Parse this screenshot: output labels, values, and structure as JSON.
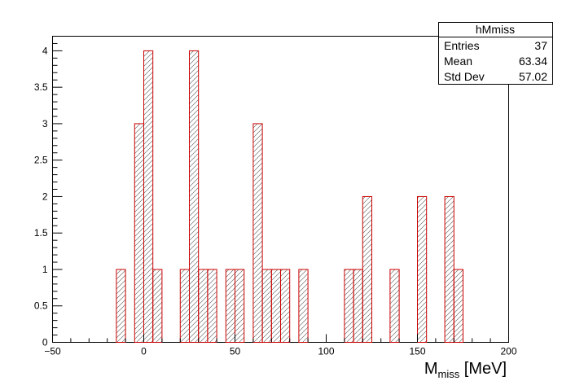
{
  "chart_data": {
    "type": "bar",
    "histogram_name": "hMmiss",
    "xlabel_main": "M",
    "xlabel_sub": "miss",
    "xlabel_unit": " [MeV]",
    "xlim": [
      -50,
      200
    ],
    "ylim": [
      0,
      4.2
    ],
    "x_ticks": [
      -50,
      0,
      50,
      100,
      150,
      200
    ],
    "x_tick_labels": [
      "−50",
      "0",
      "50",
      "100",
      "150",
      "200"
    ],
    "y_ticks": [
      0,
      0.5,
      1,
      1.5,
      2,
      2.5,
      3,
      3.5,
      4
    ],
    "y_tick_labels": [
      "0",
      "0.5",
      "1",
      "1.5",
      "2",
      "2.5",
      "3",
      "3.5",
      "4"
    ],
    "bin_width": 5,
    "bins": [
      {
        "x": -15,
        "value": 1
      },
      {
        "x": -5,
        "value": 3
      },
      {
        "x": 0,
        "value": 4
      },
      {
        "x": 5,
        "value": 1
      },
      {
        "x": 20,
        "value": 1
      },
      {
        "x": 25,
        "value": 4
      },
      {
        "x": 30,
        "value": 1
      },
      {
        "x": 35,
        "value": 1
      },
      {
        "x": 45,
        "value": 1
      },
      {
        "x": 50,
        "value": 1
      },
      {
        "x": 60,
        "value": 3
      },
      {
        "x": 65,
        "value": 1
      },
      {
        "x": 70,
        "value": 1
      },
      {
        "x": 75,
        "value": 1
      },
      {
        "x": 85,
        "value": 1
      },
      {
        "x": 110,
        "value": 1
      },
      {
        "x": 115,
        "value": 1
      },
      {
        "x": 120,
        "value": 2
      },
      {
        "x": 135,
        "value": 1
      },
      {
        "x": 150,
        "value": 2
      },
      {
        "x": 165,
        "value": 2
      },
      {
        "x": 170,
        "value": 1
      }
    ],
    "grid": false,
    "line_color": "#cc0000",
    "hatch_color": "#555555",
    "stats_box": {
      "title": "hMmiss",
      "rows": [
        {
          "label": "Entries",
          "value": "37"
        },
        {
          "label": "Mean",
          "value": "63.34"
        },
        {
          "label": "Std Dev",
          "value": "57.02"
        }
      ],
      "placement": "top-right"
    }
  }
}
